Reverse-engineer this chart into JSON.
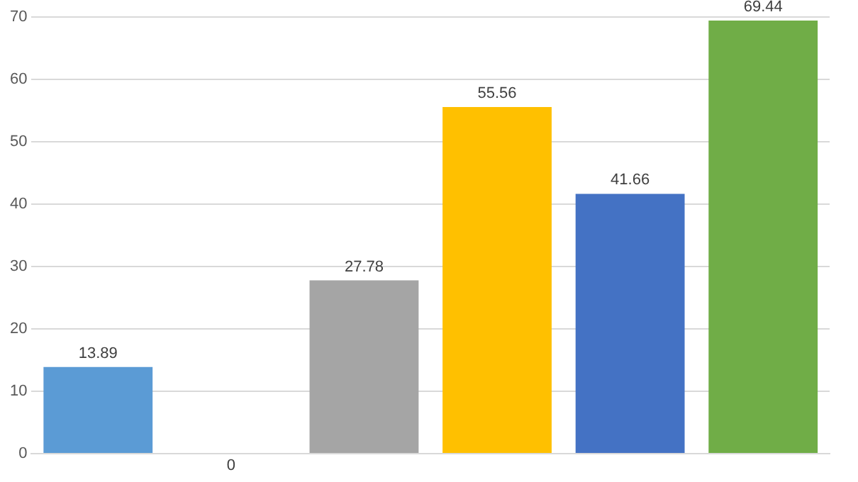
{
  "chart_data": {
    "type": "bar",
    "categories": [
      null,
      null,
      null,
      null,
      null,
      null
    ],
    "values": [
      13.89,
      0,
      27.78,
      55.56,
      41.66,
      69.44
    ],
    "colors": [
      "#5b9bd5",
      "#ed7d31",
      "#a5a5a5",
      "#ffc000",
      "#4472c4",
      "#70ad47"
    ],
    "ylim": [
      0,
      70
    ],
    "yticks": [
      0,
      10,
      20,
      30,
      40,
      50,
      60,
      70
    ],
    "grid": "y",
    "tick_labels": "y",
    "data_labels": true
  }
}
